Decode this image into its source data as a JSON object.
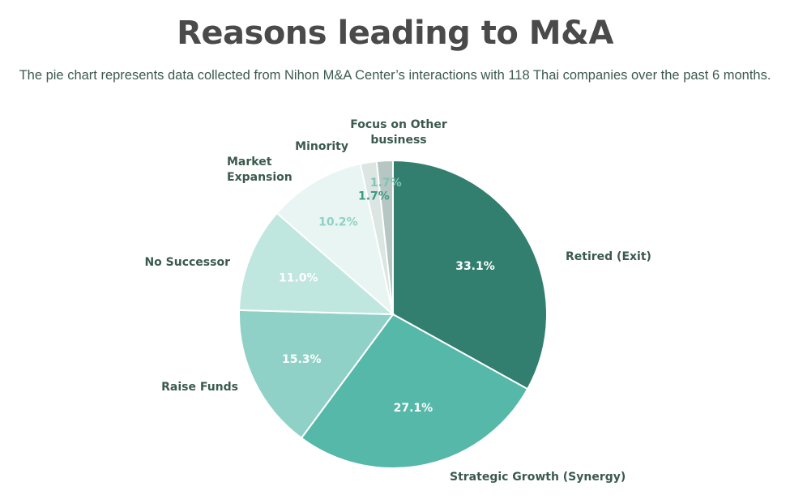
{
  "header": {
    "title": "Reasons leading to M&A",
    "subtitle": "The pie chart represents data collected from Nihon M&A Center’s interactions with 118 Thai companies over the past 6 months."
  },
  "chart_data": {
    "type": "pie",
    "title": "Reasons leading to M&A",
    "subtitle": "The pie chart represents data collected from Nihon M&A Center’s interactions with 118 Thai companies over the past 6 months.",
    "slices": [
      {
        "label": [
          "Retired (Exit)"
        ],
        "value": 33.1,
        "display": "33.1%",
        "color": "#337f6f",
        "text_color": "#ffffff"
      },
      {
        "label": [
          "Strategic Growth (Synergy)"
        ],
        "value": 27.1,
        "display": "27.1%",
        "color": "#55b8a9",
        "text_color": "#ffffff"
      },
      {
        "label": [
          "Raise Funds"
        ],
        "value": 15.3,
        "display": "15.3%",
        "color": "#8fd1c6",
        "text_color": "#ffffff"
      },
      {
        "label": [
          "No Successor"
        ],
        "value": 11.0,
        "display": "11.0%",
        "color": "#bfe6df",
        "text_color": "#ffffff"
      },
      {
        "label": [
          "Market",
          "Expansion"
        ],
        "value": 10.2,
        "display": "10.2%",
        "color": "#e8f5f2",
        "text_color": "#8fd1c6"
      },
      {
        "label": [
          "Minority"
        ],
        "value": 1.7,
        "display": "1.7%",
        "color": "#dbe5e2",
        "text_color": "#3f9a85"
      },
      {
        "label": [
          "Focus on Other",
          "business"
        ],
        "value": 1.7,
        "display": "1.7%",
        "color": "#b6c7c3",
        "text_color": "#7fc4b6"
      }
    ]
  }
}
